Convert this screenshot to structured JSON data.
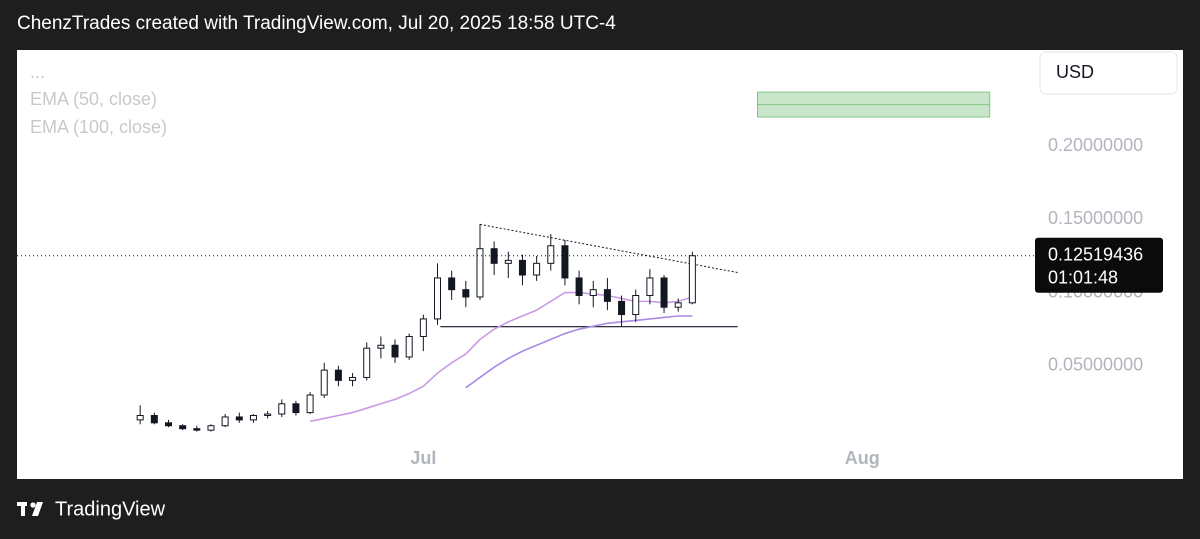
{
  "header": "ChenzTrades created with TradingView.com, Jul 20, 2025 18:58 UTC-4",
  "footer": "TradingView",
  "chart_data": {
    "type": "candlestick",
    "legend_more": "...",
    "currency": "USD",
    "last_price": 0.12519436,
    "countdown": "01:01:48",
    "x": [
      10,
      11,
      12,
      13,
      14,
      15,
      16,
      17,
      18,
      19,
      20,
      21,
      22,
      23,
      24,
      25,
      26,
      27,
      28,
      29,
      30,
      31,
      32,
      33,
      34,
      35,
      36,
      37,
      38,
      39,
      40,
      41,
      42,
      43,
      44,
      45,
      46,
      47,
      48,
      49
    ],
    "open": [
      0.013,
      0.016,
      0.011,
      0.009,
      0.007,
      0.006,
      0.009,
      0.015,
      0.013,
      0.016,
      0.017,
      0.024,
      0.018,
      0.03,
      0.047,
      0.04,
      0.042,
      0.062,
      0.064,
      0.056,
      0.07,
      0.082,
      0.11,
      0.102,
      0.097,
      0.13,
      0.12,
      0.122,
      0.112,
      0.12,
      0.132,
      0.11,
      0.098,
      0.102,
      0.094,
      0.085,
      0.098,
      0.11,
      0.09,
      0.093
    ],
    "high": [
      0.023,
      0.018,
      0.013,
      0.01,
      0.009,
      0.01,
      0.017,
      0.018,
      0.017,
      0.019,
      0.027,
      0.026,
      0.032,
      0.052,
      0.05,
      0.045,
      0.066,
      0.07,
      0.068,
      0.072,
      0.085,
      0.12,
      0.115,
      0.108,
      0.147,
      0.135,
      0.128,
      0.126,
      0.125,
      0.14,
      0.136,
      0.115,
      0.108,
      0.11,
      0.098,
      0.102,
      0.116,
      0.112,
      0.096,
      0.128
    ],
    "low": [
      0.01,
      0.01,
      0.008,
      0.006,
      0.005,
      0.005,
      0.008,
      0.011,
      0.011,
      0.014,
      0.015,
      0.016,
      0.017,
      0.028,
      0.036,
      0.036,
      0.04,
      0.055,
      0.052,
      0.054,
      0.06,
      0.078,
      0.095,
      0.09,
      0.095,
      0.112,
      0.11,
      0.105,
      0.108,
      0.115,
      0.105,
      0.092,
      0.09,
      0.088,
      0.077,
      0.08,
      0.092,
      0.086,
      0.087,
      0.092
    ],
    "close": [
      0.016,
      0.011,
      0.009,
      0.007,
      0.006,
      0.009,
      0.015,
      0.013,
      0.016,
      0.017,
      0.024,
      0.018,
      0.03,
      0.047,
      0.04,
      0.042,
      0.062,
      0.064,
      0.056,
      0.07,
      0.082,
      0.11,
      0.102,
      0.097,
      0.13,
      0.12,
      0.122,
      0.112,
      0.12,
      0.132,
      0.11,
      0.098,
      0.102,
      0.094,
      0.085,
      0.098,
      0.11,
      0.09,
      0.093,
      0.12519436
    ],
    "series": [
      {
        "name": "EMA (50, close)",
        "color": "#c99be6",
        "values": [
          null,
          null,
          null,
          null,
          null,
          null,
          null,
          null,
          null,
          null,
          null,
          null,
          0.012,
          0.014,
          0.016,
          0.018,
          0.021,
          0.024,
          0.027,
          0.031,
          0.036,
          0.045,
          0.052,
          0.058,
          0.068,
          0.075,
          0.08,
          0.084,
          0.088,
          0.094,
          0.1,
          0.1,
          0.099,
          0.098,
          0.096,
          0.094,
          0.094,
          0.093,
          0.094,
          0.097
        ]
      },
      {
        "name": "EMA (100, close)",
        "color": "#a98ae6",
        "values": [
          null,
          null,
          null,
          null,
          null,
          null,
          null,
          null,
          null,
          null,
          null,
          null,
          null,
          null,
          null,
          null,
          null,
          null,
          null,
          null,
          null,
          null,
          null,
          0.035,
          0.042,
          0.049,
          0.055,
          0.06,
          0.064,
          0.068,
          0.072,
          0.075,
          0.077,
          0.079,
          0.08,
          0.081,
          0.082,
          0.083,
          0.084,
          0.084
        ]
      }
    ],
    "drawings": {
      "support": {
        "x": [
          31.2,
          52.2
        ],
        "y": [
          0.0767,
          0.0767
        ]
      },
      "trendline": {
        "x": [
          34,
          52.2
        ],
        "y": [
          0.1466,
          0.1137
        ]
      },
      "target_box": {
        "x": [
          53.6,
          70
        ],
        "y": [
          0.22,
          0.237
        ],
        "mid": 0.2285
      }
    },
    "xlim": [
      1.3,
      73.2
    ],
    "ylim": [
      -0.0274,
      0.2658
    ],
    "xticks": [
      {
        "value": 30,
        "label": "Jul"
      },
      {
        "value": 61,
        "label": "Aug"
      }
    ],
    "yticks": [
      {
        "value": 0.05,
        "label": "0.05000000"
      },
      {
        "value": 0.1,
        "label": "0.10000000"
      },
      {
        "value": 0.15,
        "label": "0.15000000"
      },
      {
        "value": 0.2,
        "label": "0.20000000"
      }
    ]
  }
}
